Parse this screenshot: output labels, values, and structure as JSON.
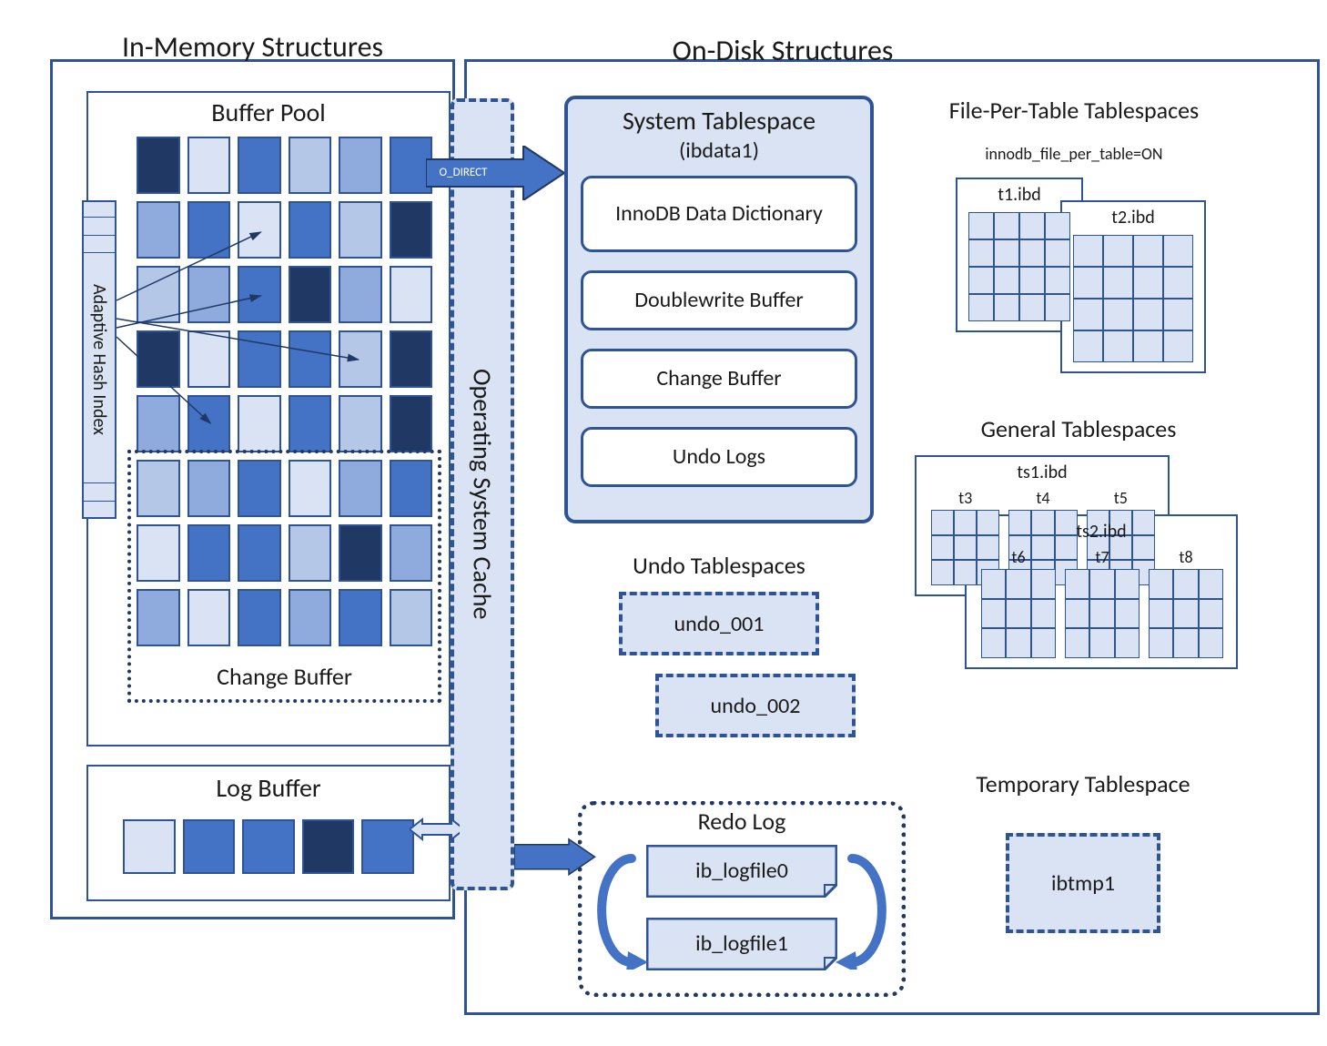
{
  "colors": {
    "outline": "#2f5496",
    "outline_dark": "#1f3864",
    "fill_pale": "#dae3f3",
    "fill_light": "#b4c7e7",
    "fill_med": "#8faadc",
    "fill_dark": "#4472c4",
    "fill_navy": "#1f3864",
    "text": "#222222",
    "white": "#ffffff"
  },
  "titles": {
    "in_memory": "In-Memory Structures",
    "on_disk": "On-Disk Structures",
    "buffer_pool": "Buffer Pool",
    "change_buffer": "Change Buffer",
    "log_buffer": "Log Buffer",
    "ahi": "Adaptive Hash Index",
    "os_cache": "Operating System Cache",
    "o_direct": "O_DIRECT",
    "system_tablespace": "System Tablespace",
    "ibdata1": "(ibdata1)",
    "data_dict": "InnoDB Data Dictionary",
    "doublewrite": "Doublewrite Buffer",
    "sys_change_buffer": "Change Buffer",
    "undo_logs": "Undo Logs",
    "file_per_table": "File-Per-Table Tablespaces",
    "fpt_setting": "innodb_file_per_table=ON",
    "t1": "t1.ibd",
    "t2": "t2.ibd",
    "general_tablespaces": "General Tablespaces",
    "ts1": "ts1.ibd",
    "ts2": "ts2.ibd",
    "gt_t3": "t3",
    "gt_t4": "t4",
    "gt_t5": "t5",
    "gt_t6": "t6",
    "gt_t7": "t7",
    "gt_t8": "t8",
    "undo_tablespaces": "Undo Tablespaces",
    "undo_001": "undo_001",
    "undo_002": "undo_002",
    "redo_log": "Redo Log",
    "ib_logfile0": "ib_logfile0",
    "ib_logfile1": "ib_logfile1",
    "temp_tablespace": "Temporary Tablespace",
    "ibtmp1": "ibtmp1"
  },
  "font_sizes": {
    "big_heading": 32,
    "section_heading": 28,
    "box_title": 26,
    "body": 24,
    "small": 20,
    "tiny": 18
  },
  "buffer_pool_grid": {
    "rows": 8,
    "cols": 6,
    "gap": 8,
    "shades": [
      "navy",
      "pale",
      "dark",
      "light",
      "med",
      "dark",
      "med",
      "dark",
      "pale",
      "dark",
      "light",
      "navy",
      "light",
      "med",
      "dark",
      "navy",
      "med",
      "pale",
      "navy",
      "pale",
      "dark",
      "dark",
      "light",
      "navy",
      "med",
      "dark",
      "pale",
      "dark",
      "light",
      "navy",
      "light",
      "med",
      "dark",
      "pale",
      "med",
      "dark",
      "pale",
      "dark",
      "dark",
      "light",
      "navy",
      "med",
      "med",
      "pale",
      "dark",
      "med",
      "dark",
      "light"
    ]
  },
  "log_buffer_grid": {
    "cells": 5,
    "gap": 8,
    "shades": [
      "pale",
      "dark",
      "dark",
      "navy",
      "dark"
    ]
  },
  "mini_grids": {
    "rows": 4,
    "cols": 4,
    "line_color": "#2f5496",
    "fill": "#dae3f3"
  },
  "small_grids": {
    "rows": 3,
    "cols": 3
  }
}
